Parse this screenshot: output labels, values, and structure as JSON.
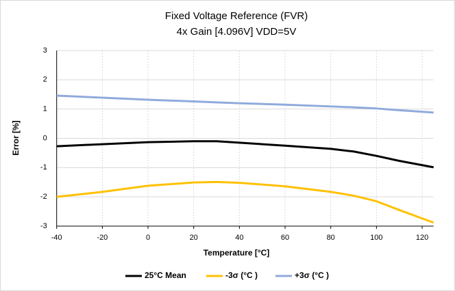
{
  "chart_data": {
    "type": "line",
    "title": "Fixed Voltage Reference (FVR)",
    "subtitle": "4x Gain [4.096V] VDD=5V",
    "x_label": "Temperature [°C]",
    "y_label": "Error [%]",
    "x": [
      -40,
      -20,
      0,
      20,
      30,
      40,
      60,
      80,
      90,
      100,
      110,
      125
    ],
    "series": [
      {
        "name": "25°C Mean",
        "color": "#000000",
        "values": [
          -0.27,
          -0.2,
          -0.13,
          -0.1,
          -0.1,
          -0.15,
          -0.25,
          -0.36,
          -0.45,
          -0.6,
          -0.77,
          -0.99
        ]
      },
      {
        "name": "-3σ (°C )",
        "color": "#ffc000",
        "values": [
          -2.0,
          -1.83,
          -1.62,
          -1.51,
          -1.49,
          -1.52,
          -1.64,
          -1.83,
          -1.96,
          -2.15,
          -2.45,
          -2.88
        ]
      },
      {
        "name": "+3σ (°C )",
        "color": "#8faadc",
        "values": [
          1.46,
          1.39,
          1.32,
          1.26,
          1.23,
          1.2,
          1.15,
          1.09,
          1.06,
          1.02,
          0.96,
          0.88
        ]
      }
    ],
    "xlim": [
      -40,
      125
    ],
    "xticks": [
      -40,
      -20,
      0,
      20,
      40,
      60,
      80,
      100,
      120
    ],
    "ylim": [
      -3,
      3
    ],
    "yticks": [
      -3,
      -2,
      -1,
      0,
      1,
      2,
      3
    ],
    "grid": true,
    "legend": "bottom"
  }
}
